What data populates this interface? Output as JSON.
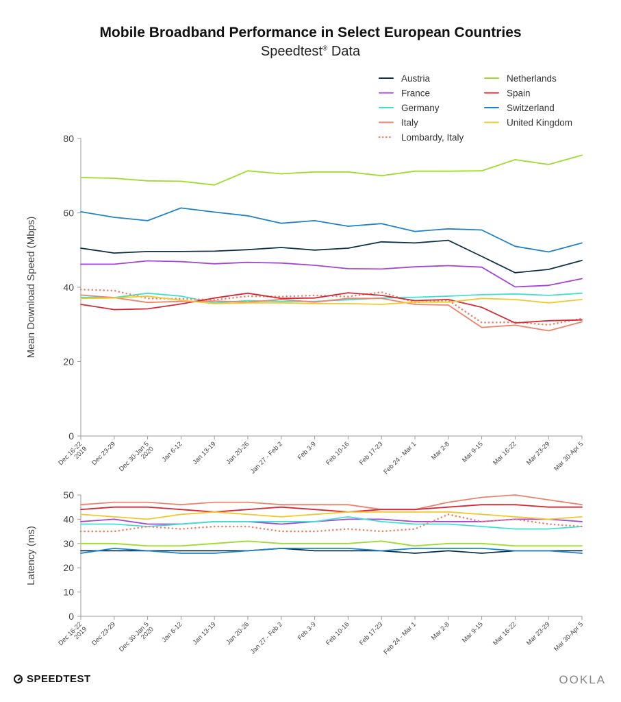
{
  "header": {
    "title": "Mobile Broadband Performance in Select European Countries",
    "subtitle": "Speedtest",
    "subtitle_mark": "®",
    "subtitle_suffix": " Data"
  },
  "footer": {
    "left_logo": "SPEEDTEST",
    "right_logo": "OOKLA"
  },
  "chart_data": [
    {
      "type": "line",
      "ylabel": "Mean Download Speed (Mbps)",
      "ylim": [
        0,
        80
      ],
      "yticks": [
        0,
        20,
        40,
        60,
        80
      ],
      "grid": false,
      "legend": "top-right",
      "categories": [
        "Dec 16-22 2019",
        "Dec 23-29",
        "Dec 30-Jan 5 2020",
        "Jan 6-12",
        "Jan 13-19",
        "Jan 20-26",
        "Jan 27 - Feb 2",
        "Feb 3-9",
        "Feb 10-16",
        "Feb 17-23",
        "Feb 24 - Mar 1",
        "Mar 2-8",
        "Mar 9-15",
        "Mar 16-22",
        "Mar 23-29",
        "Mar 30-Apr 5"
      ],
      "series": [
        {
          "name": "Austria",
          "color": "#0d3147",
          "dash": false,
          "values": [
            50.5,
            49.2,
            49.6,
            49.6,
            49.7,
            50.1,
            50.7,
            50.0,
            50.5,
            52.2,
            51.9,
            52.6,
            48.3,
            43.9,
            44.8,
            47.2
          ]
        },
        {
          "name": "France",
          "color": "#a343d9",
          "dash": false,
          "values": [
            46.2,
            46.2,
            47.1,
            46.9,
            46.3,
            46.7,
            46.5,
            45.9,
            45.0,
            44.9,
            45.5,
            45.8,
            45.4,
            40.1,
            40.5,
            42.3
          ]
        },
        {
          "name": "Germany",
          "color": "#3ee0cf",
          "dash": false,
          "values": [
            37.3,
            37.2,
            38.4,
            37.6,
            35.8,
            36.4,
            36.2,
            36.2,
            36.6,
            37.1,
            37.3,
            37.6,
            38.0,
            38.2,
            37.8,
            38.4
          ]
        },
        {
          "name": "Italy",
          "color": "#f0826b",
          "dash": false,
          "values": [
            37.9,
            37.2,
            35.9,
            36.2,
            36.3,
            36.0,
            36.7,
            36.0,
            37.0,
            37.0,
            35.4,
            35.2,
            29.2,
            29.8,
            28.3,
            30.7
          ]
        },
        {
          "name": "Lombardy, Italy",
          "color": "#f0826b",
          "dash": true,
          "values": [
            39.4,
            39.1,
            37.0,
            36.9,
            36.6,
            37.6,
            37.5,
            37.8,
            37.5,
            38.7,
            35.9,
            36.5,
            30.5,
            30.6,
            29.9,
            31.6
          ]
        },
        {
          "name": "Netherlands",
          "color": "#9edc2c",
          "dash": false,
          "values": [
            69.5,
            69.3,
            68.6,
            68.5,
            67.5,
            71.3,
            70.5,
            71.0,
            71.0,
            70.0,
            71.2,
            71.2,
            71.3,
            74.3,
            73.0,
            75.5
          ]
        },
        {
          "name": "Spain",
          "color": "#d52a35",
          "dash": false,
          "values": [
            35.4,
            34.0,
            34.2,
            35.5,
            37.1,
            38.4,
            37.0,
            37.1,
            38.5,
            37.8,
            36.4,
            36.7,
            34.6,
            30.4,
            31.0,
            31.2
          ]
        },
        {
          "name": "Switzerland",
          "color": "#1d82c8",
          "dash": false,
          "values": [
            60.3,
            58.8,
            57.9,
            61.3,
            60.2,
            59.2,
            57.2,
            57.9,
            56.4,
            57.1,
            55.0,
            55.7,
            55.4,
            51.0,
            49.5,
            51.9
          ]
        },
        {
          "name": "United Kingdom",
          "color": "#f0c92e",
          "dash": false,
          "values": [
            37.0,
            37.1,
            37.6,
            36.5,
            35.6,
            35.8,
            35.8,
            35.6,
            35.6,
            35.4,
            36.0,
            36.0,
            37.0,
            36.7,
            35.8,
            36.7
          ]
        }
      ]
    },
    {
      "type": "line",
      "ylabel": "Latency (ms)",
      "ylim": [
        0,
        50
      ],
      "yticks": [
        0,
        10,
        20,
        30,
        40,
        50
      ],
      "grid": false,
      "categories": [
        "Dec 16-22 2019",
        "Dec 23-29",
        "Dec 30-Jan 5 2020",
        "Jan 6-12",
        "Jan 13-19",
        "Jan 20-26",
        "Jan 27 - Feb 2",
        "Feb 3-9",
        "Feb 10-16",
        "Feb 17-23",
        "Feb 24 - Mar 1",
        "Mar 2-8",
        "Mar 9-15",
        "Mar 16-22",
        "Mar 23-29",
        "Mar 30-Apr 5"
      ],
      "series": [
        {
          "name": "Austria",
          "color": "#0d3147",
          "dash": false,
          "values": [
            27,
            27,
            27,
            27,
            27,
            27,
            28,
            27,
            27,
            27,
            26,
            27,
            26,
            27,
            27,
            27
          ]
        },
        {
          "name": "France",
          "color": "#a343d9",
          "dash": false,
          "values": [
            39,
            40,
            38,
            38,
            39,
            39,
            38,
            39,
            40,
            40,
            39,
            39,
            39,
            40,
            40,
            39
          ]
        },
        {
          "name": "Germany",
          "color": "#3ee0cf",
          "dash": false,
          "values": [
            38,
            38,
            37,
            38,
            39,
            39,
            39,
            39,
            41,
            39,
            38,
            38,
            37,
            36,
            36,
            37
          ]
        },
        {
          "name": "Italy",
          "color": "#f0826b",
          "dash": false,
          "values": [
            46,
            47,
            47,
            46,
            47,
            47,
            46,
            46,
            46,
            44,
            44,
            47,
            49,
            50,
            48,
            46
          ]
        },
        {
          "name": "Lombardy, Italy",
          "color": "#f0826b",
          "dash": true,
          "values": [
            35,
            35,
            37,
            36,
            37,
            37,
            35,
            35,
            36,
            35,
            36,
            42,
            39,
            40,
            38,
            37
          ]
        },
        {
          "name": "Netherlands",
          "color": "#9edc2c",
          "dash": false,
          "values": [
            30,
            30,
            29,
            29,
            30,
            31,
            30,
            30,
            30,
            31,
            29,
            30,
            30,
            29,
            29,
            29
          ]
        },
        {
          "name": "Spain",
          "color": "#d52a35",
          "dash": false,
          "values": [
            44,
            45,
            45,
            44,
            43,
            44,
            45,
            44,
            43,
            44,
            44,
            45,
            46,
            46,
            45,
            45
          ]
        },
        {
          "name": "Switzerland",
          "color": "#1d82c8",
          "dash": false,
          "values": [
            26,
            28,
            27,
            26,
            26,
            27,
            28,
            28,
            28,
            27,
            28,
            28,
            28,
            27,
            27,
            26
          ]
        },
        {
          "name": "United Kingdom",
          "color": "#f0c92e",
          "dash": false,
          "values": [
            42,
            41,
            40,
            42,
            43,
            42,
            41,
            42,
            43,
            43,
            43,
            43,
            42,
            41,
            40,
            41
          ]
        }
      ]
    }
  ],
  "legend": {
    "left": [
      "Austria",
      "France",
      "Germany",
      "Italy",
      "Lombardy, Italy"
    ],
    "right": [
      "Netherlands",
      "Spain",
      "Switzerland",
      "United Kingdom"
    ]
  }
}
